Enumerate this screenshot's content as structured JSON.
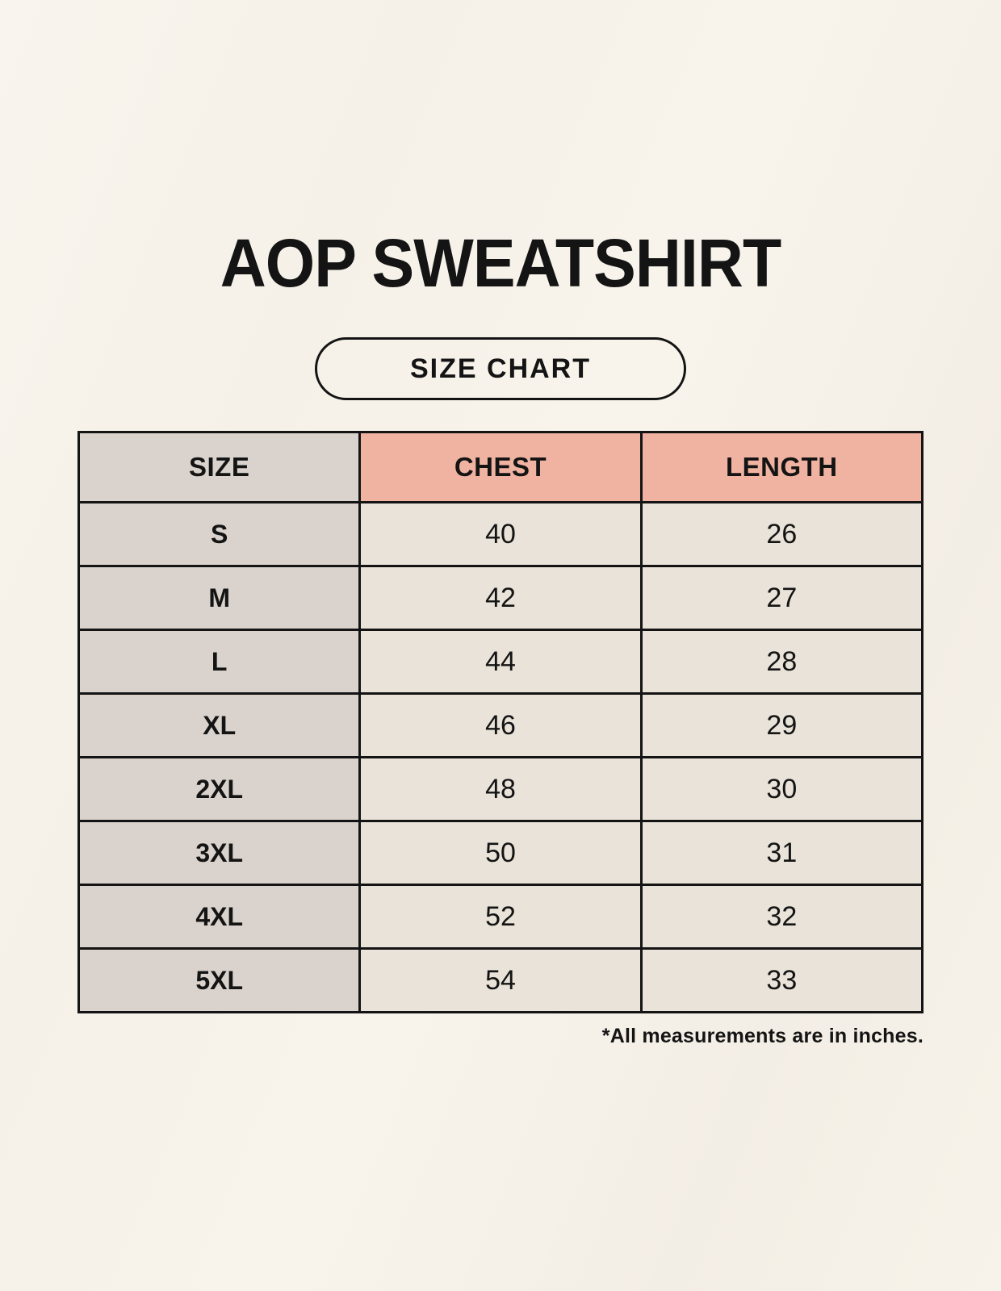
{
  "page": {
    "title": "AOP SWEATSHIRT",
    "badge_label": "SIZE CHART",
    "footnote": "*All measurements are in inches."
  },
  "colors": {
    "background": "#f6f2ea",
    "size_column_bg": "#d9d2cd",
    "header_accent_bg": "#f1b3a1",
    "data_cell_bg": "#eae3d9",
    "border": "#141414",
    "text": "#141414"
  },
  "chart_data": {
    "type": "table",
    "title": "AOP SWEATSHIRT",
    "subtitle": "SIZE CHART",
    "columns": [
      "SIZE",
      "CHEST",
      "LENGTH"
    ],
    "rows": [
      {
        "size": "S",
        "chest": 40,
        "length": 26
      },
      {
        "size": "M",
        "chest": 42,
        "length": 27
      },
      {
        "size": "L",
        "chest": 44,
        "length": 28
      },
      {
        "size": "XL",
        "chest": 46,
        "length": 29
      },
      {
        "size": "2XL",
        "chest": 48,
        "length": 30
      },
      {
        "size": "3XL",
        "chest": 50,
        "length": 31
      },
      {
        "size": "4XL",
        "chest": 52,
        "length": 32
      },
      {
        "size": "5XL",
        "chest": 54,
        "length": 33
      }
    ],
    "units_note": "*All measurements are in inches.",
    "layout": "3 equal columns; first column gray, header of columns 2-3 salmon; black grid borders"
  }
}
